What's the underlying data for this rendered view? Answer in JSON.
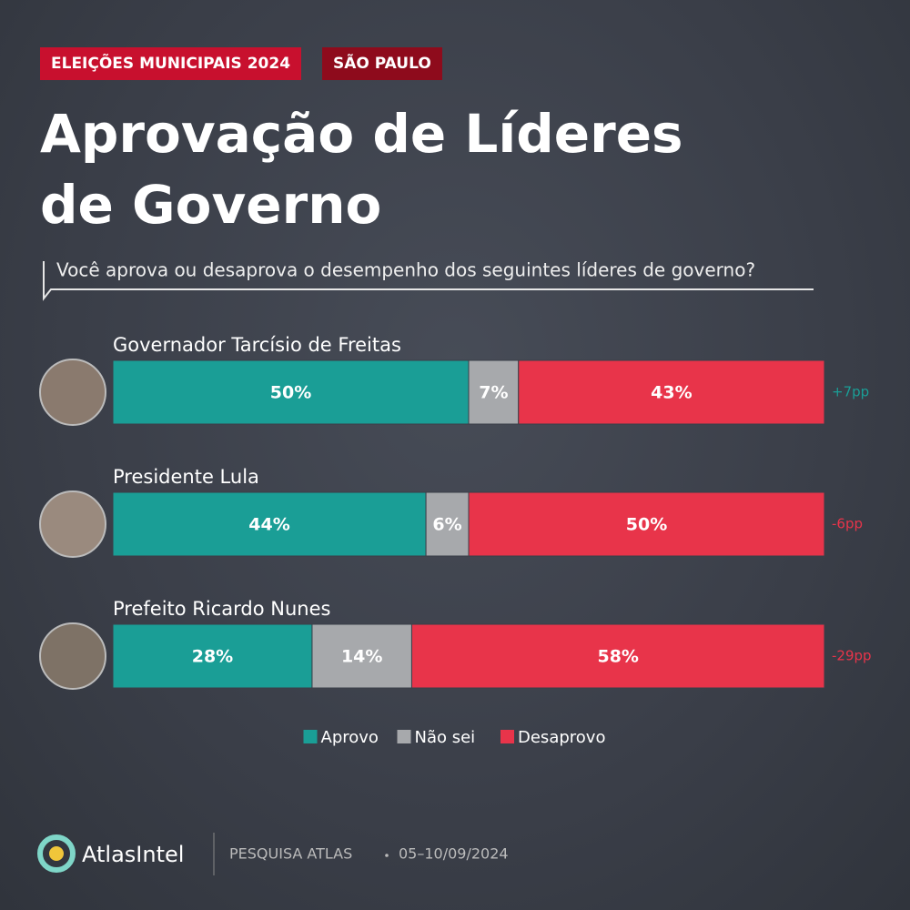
{
  "tags": [
    "ELEIÇÕES MUNICIPAIS 2024",
    "SÃO PAULO"
  ],
  "chart_data": {
    "type": "stacked-bar",
    "title": "Aprovação de Líderes de Governo",
    "subtitle": "Você aprova ou desaprova o desempenho dos seguintes líderes de governo?",
    "categories": [
      "Governador Tarcísio de Freitas",
      "Presidente Lula",
      "Prefeito Ricardo Nunes"
    ],
    "xlim": [
      0,
      100
    ],
    "series": [
      {
        "name": "Aprovo",
        "color": "#1a9e96",
        "values": [
          50,
          44,
          28
        ],
        "value_labels": [
          "50%",
          "44%",
          "28%"
        ]
      },
      {
        "name": "Não sei",
        "color": "#a7a9ac",
        "values": [
          7,
          6,
          14
        ],
        "value_labels": [
          "7%",
          "6%",
          "14%"
        ]
      },
      {
        "name": "Desaprovo",
        "color": "#e8344a",
        "values": [
          43,
          50,
          58
        ],
        "value_labels": [
          "43%",
          "50%",
          "58%"
        ]
      }
    ],
    "net": {
      "values": [
        7,
        -6,
        -29
      ],
      "value_labels": [
        "+7pp",
        "-6pp",
        "-29pp"
      ]
    }
  },
  "footer": {
    "brand": "AtlasIntel",
    "source": "PESQUISA ATLAS",
    "dates": "05–10/09/2024"
  }
}
